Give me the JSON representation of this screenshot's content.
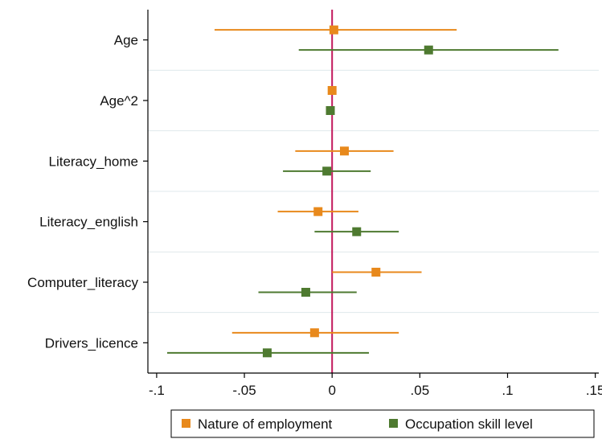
{
  "chart_data": {
    "type": "scatter",
    "subtype": "coefficient-plot",
    "categories": [
      "Age",
      "Age^2",
      "Literacy_home",
      "Literacy_english",
      "Computer_literacy",
      "Drivers_licence"
    ],
    "series": [
      {
        "name": "Nature of employment",
        "color": "#E8891C",
        "estimate": [
          0.001,
          0.0,
          0.007,
          -0.008,
          0.025,
          -0.01
        ],
        "ci_low": [
          -0.067,
          -0.001,
          -0.021,
          -0.031,
          0.0,
          -0.057
        ],
        "ci_high": [
          0.071,
          0.001,
          0.035,
          0.015,
          0.051,
          0.038
        ]
      },
      {
        "name": "Occupation skill level",
        "color": "#4E7A30",
        "estimate": [
          0.055,
          -0.001,
          -0.003,
          0.014,
          -0.015,
          -0.037
        ],
        "ci_low": [
          -0.019,
          -0.002,
          -0.028,
          -0.01,
          -0.042,
          -0.094
        ],
        "ci_high": [
          0.129,
          0.0,
          0.022,
          0.038,
          0.014,
          0.021
        ]
      }
    ],
    "x_ticks": [
      -0.1,
      -0.05,
      0,
      0.05,
      0.1,
      0.15
    ],
    "x_tick_labels": [
      "-.1",
      "-.05",
      "0",
      ".05",
      ".1",
      ".15"
    ],
    "xlim": [
      -0.105,
      0.152
    ],
    "reference_line": {
      "x": 0,
      "color": "#C2185B"
    },
    "grid": true,
    "legend_position": "bottom"
  }
}
